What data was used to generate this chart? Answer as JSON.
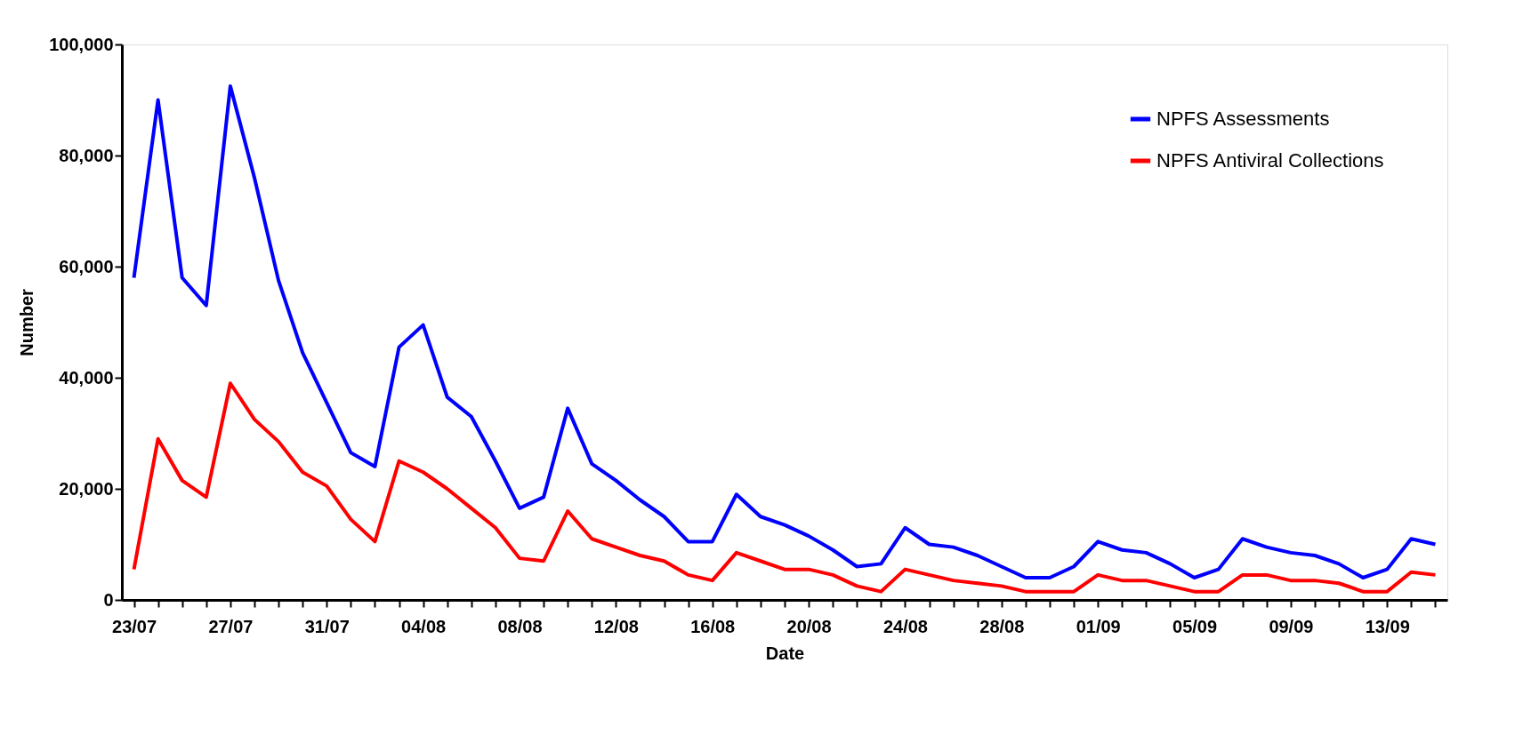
{
  "chart_data": {
    "type": "line",
    "xlabel": "Date",
    "ylabel": "Number",
    "categories": [
      "23/07",
      null,
      null,
      null,
      "27/07",
      null,
      null,
      null,
      "31/07",
      null,
      null,
      null,
      "04/08",
      null,
      null,
      null,
      "08/08",
      null,
      null,
      null,
      "12/08",
      null,
      null,
      null,
      "16/08",
      null,
      null,
      null,
      "20/08",
      null,
      null,
      null,
      "24/08",
      null,
      null,
      null,
      "28/08",
      null,
      null,
      null,
      "01/09",
      null,
      null,
      null,
      "05/09",
      null,
      null,
      null,
      "09/09",
      null,
      null,
      null,
      "13/09",
      null,
      null
    ],
    "series": [
      {
        "name": "NPFS Assessments",
        "color": "#0000ff",
        "values": [
          58000,
          90000,
          58000,
          53000,
          92500,
          76000,
          57500,
          44500,
          35500,
          26500,
          24000,
          45500,
          49500,
          36500,
          33000,
          25000,
          16500,
          18500,
          34500,
          24500,
          21500,
          18000,
          15000,
          10500,
          10500,
          19000,
          15000,
          13500,
          11500,
          9000,
          6000,
          6500,
          13000,
          10000,
          9500,
          8000,
          6000,
          4000,
          4000,
          6000,
          10500,
          9000,
          8500,
          6500,
          4000,
          5500,
          11000,
          9500,
          8500,
          8000,
          6500,
          4000,
          5500,
          11000,
          10000
        ]
      },
      {
        "name": "NPFS Antiviral Collections",
        "color": "#ff0000",
        "values": [
          5500,
          29000,
          21500,
          18500,
          39000,
          32500,
          28500,
          23000,
          20500,
          14500,
          10500,
          25000,
          23000,
          20000,
          16500,
          13000,
          7500,
          7000,
          16000,
          11000,
          9500,
          8000,
          7000,
          4500,
          3500,
          8500,
          7000,
          5500,
          5500,
          4500,
          2500,
          1500,
          5500,
          4500,
          3500,
          3000,
          2500,
          1500,
          1500,
          1500,
          4500,
          3500,
          3500,
          2500,
          1500,
          1500,
          4500,
          4500,
          3500,
          3500,
          3000,
          1500,
          1500,
          5000,
          4500
        ]
      }
    ],
    "ylim": [
      0,
      100000
    ],
    "yticks": [
      0,
      {
        "value": 20000,
        "label": "20,000"
      },
      {
        "value": 40000,
        "label": "40,000"
      },
      {
        "value": 60000,
        "label": "60,000"
      },
      {
        "value": 80000,
        "label": "80,000"
      },
      {
        "value": 100000,
        "label": "100,000"
      }
    ],
    "grid": false,
    "legend": "top right",
    "marker": "none",
    "line_style": "solid"
  }
}
